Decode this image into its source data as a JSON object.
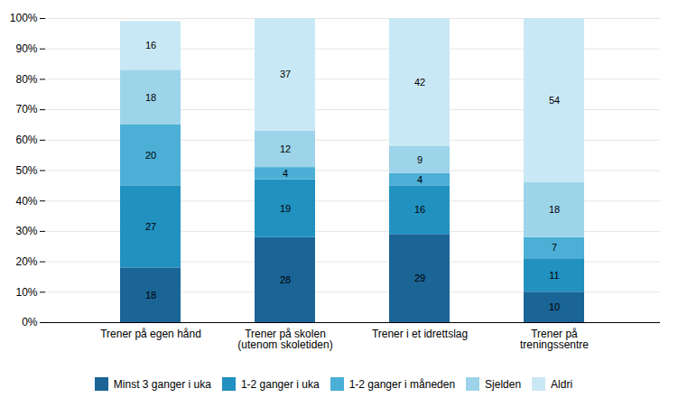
{
  "chart_data": {
    "type": "bar",
    "stacked": true,
    "categories": [
      "Trener på egen hånd",
      "Trener på skolen\n(utenom skoletiden)",
      "Trener i et idrettslag",
      "Trener på\ntreningssentre"
    ],
    "series": [
      {
        "name": "Minst 3 ganger i uka",
        "color": "#1A6496",
        "values": [
          18,
          28,
          29,
          10
        ]
      },
      {
        "name": "1-2 ganger i uka",
        "color": "#2191C0",
        "values": [
          27,
          19,
          16,
          11
        ]
      },
      {
        "name": "1-2 ganger i måneden",
        "color": "#4BAFD6",
        "values": [
          20,
          4,
          4,
          7
        ]
      },
      {
        "name": "Sjelden",
        "color": "#9DD4EA",
        "values": [
          18,
          12,
          9,
          18
        ]
      },
      {
        "name": "Aldri",
        "color": "#C9E8F5",
        "values": [
          16,
          37,
          42,
          54
        ]
      }
    ],
    "ylim": [
      0,
      100
    ],
    "yticks": [
      {
        "value": 0,
        "label": "0%"
      },
      {
        "value": 10,
        "label": "10%"
      },
      {
        "value": 20,
        "label": "20%"
      },
      {
        "value": 30,
        "label": "30%"
      },
      {
        "value": 40,
        "label": "40%"
      },
      {
        "value": 50,
        "label": "50%"
      },
      {
        "value": 60,
        "label": "60%"
      },
      {
        "value": 70,
        "label": "70%"
      },
      {
        "value": 80,
        "label": "80%"
      },
      {
        "value": 90,
        "label": "90%"
      },
      {
        "value": 100,
        "label": "100%"
      }
    ],
    "grid": true,
    "data_labels": true,
    "legend": "bottom"
  }
}
